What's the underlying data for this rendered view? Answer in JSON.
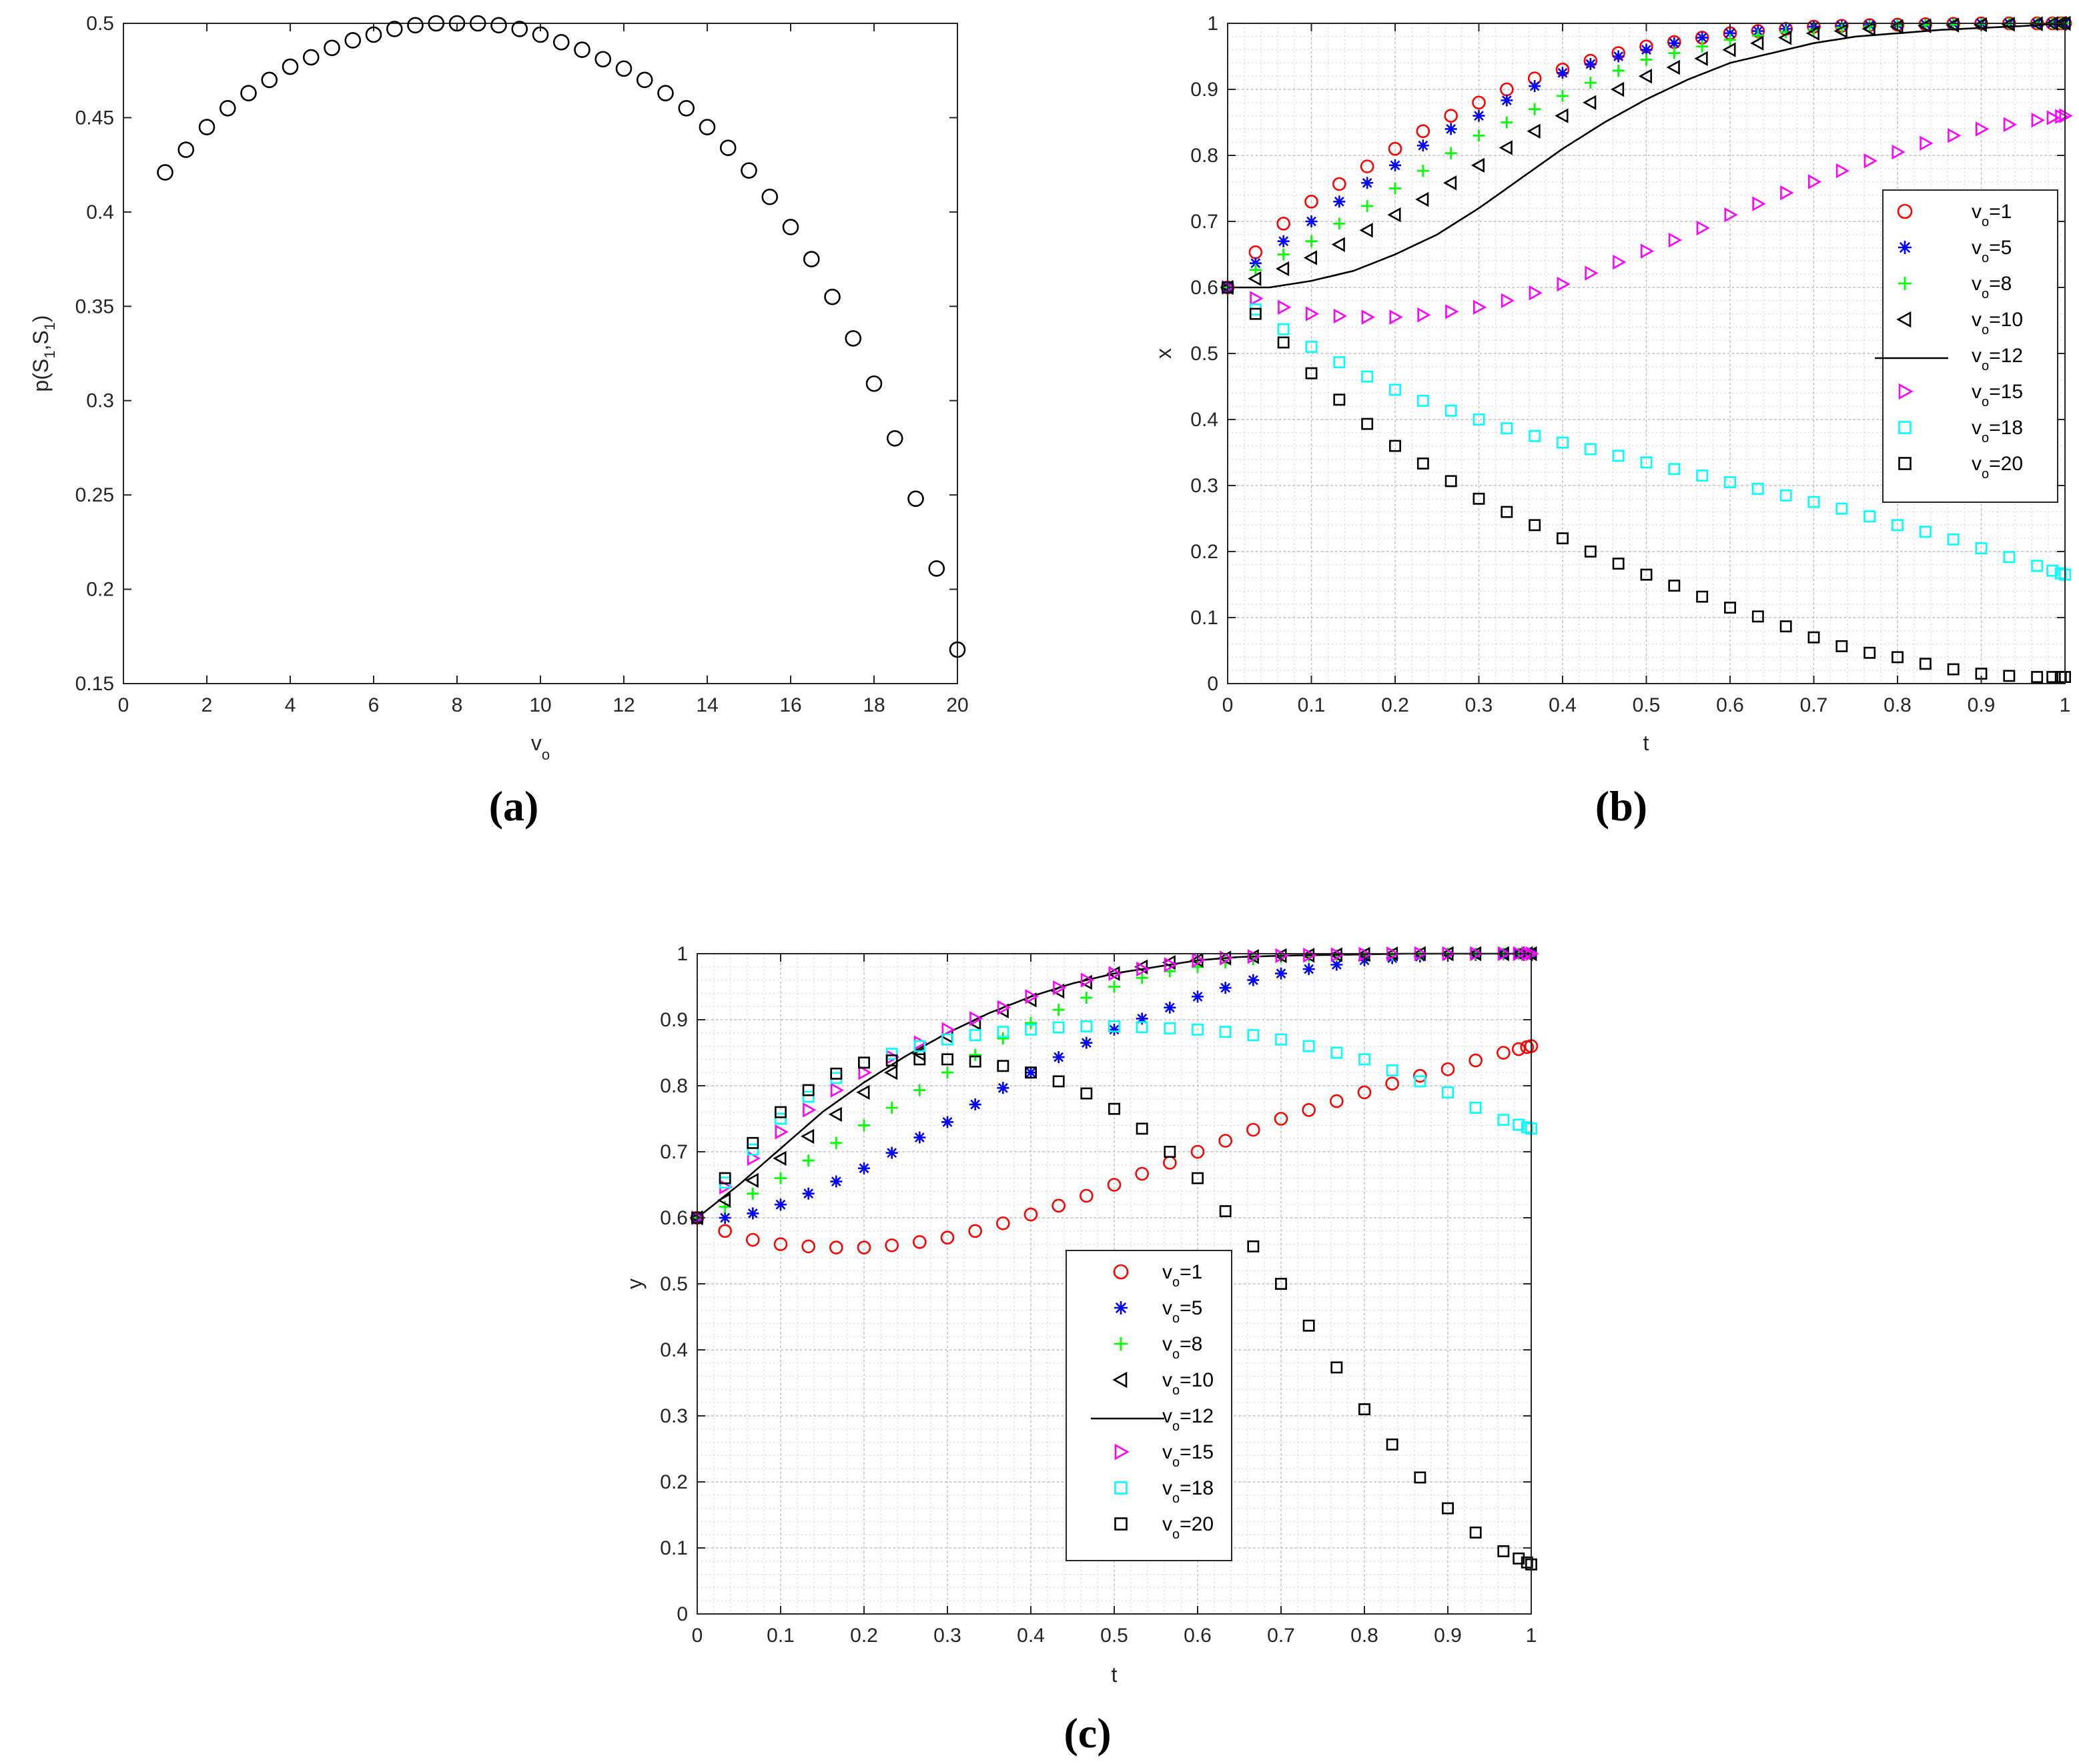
{
  "chart_data": [
    {
      "panel": "a",
      "caption": "(a)",
      "type": "scatter",
      "title": "",
      "xlabel": "v",
      "xlabel_sub": "o",
      "ylabel": "p(S",
      "ylabel_parts": [
        "p(S",
        "1",
        ",S",
        "1",
        ")"
      ],
      "xlim": [
        0,
        20
      ],
      "ylim": [
        0.15,
        0.5
      ],
      "xticks": [
        0,
        2,
        4,
        6,
        8,
        10,
        12,
        14,
        16,
        18,
        20
      ],
      "yticks": [
        0.15,
        0.2,
        0.25,
        0.3,
        0.35,
        0.4,
        0.45,
        0.5
      ],
      "grid": false,
      "marker": "circle",
      "color": "#000000",
      "x": [
        1,
        1.5,
        2,
        2.5,
        3,
        3.5,
        4,
        4.5,
        5,
        5.5,
        6,
        6.5,
        7,
        7.5,
        8,
        8.5,
        9,
        9.5,
        10,
        10.5,
        11,
        11.5,
        12,
        12.5,
        13,
        13.5,
        14,
        14.5,
        15,
        15.5,
        16,
        16.5,
        17,
        17.5,
        18,
        18.5,
        19,
        19.5,
        20
      ],
      "y": [
        0.421,
        0.433,
        0.445,
        0.455,
        0.463,
        0.47,
        0.477,
        0.482,
        0.487,
        0.491,
        0.494,
        0.497,
        0.499,
        0.5,
        0.5,
        0.5,
        0.499,
        0.497,
        0.494,
        0.49,
        0.486,
        0.481,
        0.476,
        0.47,
        0.463,
        0.455,
        0.445,
        0.434,
        0.422,
        0.408,
        0.392,
        0.375,
        0.355,
        0.333,
        0.309,
        0.28,
        0.248,
        0.211,
        0.168
      ]
    },
    {
      "panel": "b",
      "caption": "(b)",
      "type": "line",
      "title": "",
      "xlabel": "t",
      "ylabel": "x",
      "xlim": [
        0,
        1
      ],
      "ylim": [
        0,
        1
      ],
      "xticks": [
        0,
        0.1,
        0.2,
        0.3,
        0.4,
        0.5,
        0.6,
        0.7,
        0.8,
        0.9,
        1
      ],
      "yticks": [
        0,
        0.1,
        0.2,
        0.3,
        0.4,
        0.5,
        0.6,
        0.7,
        0.8,
        0.9,
        1
      ],
      "grid": true,
      "legend_position": "right",
      "t": [
        0,
        0.05,
        0.1,
        0.15,
        0.2,
        0.25,
        0.3,
        0.35,
        0.4,
        0.45,
        0.5,
        0.55,
        0.6,
        0.65,
        0.7,
        0.75,
        0.8,
        0.85,
        0.9,
        0.95,
        1
      ],
      "series": [
        {
          "name": "1",
          "marker": "circle",
          "color": "#ff0000",
          "values": [
            0.6,
            0.68,
            0.73,
            0.77,
            0.81,
            0.85,
            0.88,
            0.91,
            0.93,
            0.95,
            0.965,
            0.975,
            0.985,
            0.99,
            0.995,
            0.997,
            0.998,
            0.999,
            1,
            1,
            1
          ]
        },
        {
          "name": "5",
          "marker": "asterisk",
          "color": "#0000ff",
          "values": [
            0.6,
            0.655,
            0.7,
            0.745,
            0.785,
            0.83,
            0.86,
            0.895,
            0.925,
            0.945,
            0.96,
            0.975,
            0.985,
            0.99,
            0.995,
            0.997,
            0.998,
            0.999,
            1,
            1,
            1
          ]
        },
        {
          "name": "8",
          "marker": "plus",
          "color": "#00ff00",
          "values": [
            0.6,
            0.64,
            0.67,
            0.71,
            0.75,
            0.79,
            0.83,
            0.86,
            0.89,
            0.92,
            0.945,
            0.96,
            0.975,
            0.985,
            0.99,
            0.995,
            0.997,
            0.998,
            0.999,
            1,
            1
          ]
        },
        {
          "name": "10",
          "marker": "triangle-left",
          "color": "#000000",
          "values": [
            0.6,
            0.62,
            0.645,
            0.675,
            0.71,
            0.745,
            0.785,
            0.825,
            0.86,
            0.89,
            0.92,
            0.94,
            0.96,
            0.975,
            0.985,
            0.99,
            0.995,
            0.997,
            0.998,
            0.999,
            1
          ]
        },
        {
          "name": "12",
          "marker": "line",
          "color": "#000000",
          "values": [
            0.6,
            0.6,
            0.61,
            0.625,
            0.65,
            0.68,
            0.72,
            0.765,
            0.81,
            0.85,
            0.885,
            0.915,
            0.94,
            0.955,
            0.97,
            0.98,
            0.985,
            0.99,
            0.993,
            0.996,
            1
          ]
        },
        {
          "name": "15",
          "marker": "triangle-right",
          "color": "#ff00ff",
          "values": [
            0.6,
            0.575,
            0.56,
            0.555,
            0.555,
            0.56,
            0.57,
            0.585,
            0.605,
            0.63,
            0.655,
            0.68,
            0.71,
            0.735,
            0.76,
            0.785,
            0.805,
            0.825,
            0.84,
            0.85,
            0.86
          ]
        },
        {
          "name": "18",
          "marker": "square",
          "color": "#00ffff",
          "values": [
            0.6,
            0.55,
            0.51,
            0.475,
            0.445,
            0.42,
            0.4,
            0.38,
            0.365,
            0.35,
            0.335,
            0.32,
            0.305,
            0.29,
            0.275,
            0.26,
            0.24,
            0.225,
            0.205,
            0.185,
            0.165
          ]
        },
        {
          "name": "20",
          "marker": "square",
          "color": "#000000",
          "values": [
            0.6,
            0.54,
            0.47,
            0.41,
            0.36,
            0.32,
            0.28,
            0.25,
            0.22,
            0.19,
            0.165,
            0.14,
            0.115,
            0.095,
            0.07,
            0.05,
            0.04,
            0.025,
            0.015,
            0.01,
            0.01
          ]
        }
      ]
    },
    {
      "panel": "c",
      "caption": "(c)",
      "type": "line",
      "title": "",
      "xlabel": "t",
      "ylabel": "y",
      "xlim": [
        0,
        1
      ],
      "ylim": [
        0,
        1
      ],
      "xticks": [
        0,
        0.1,
        0.2,
        0.3,
        0.4,
        0.5,
        0.6,
        0.7,
        0.8,
        0.9,
        1
      ],
      "yticks": [
        0,
        0.1,
        0.2,
        0.3,
        0.4,
        0.5,
        0.6,
        0.7,
        0.8,
        0.9,
        1
      ],
      "grid": true,
      "legend_position": "center",
      "t": [
        0,
        0.05,
        0.1,
        0.15,
        0.2,
        0.25,
        0.3,
        0.35,
        0.4,
        0.45,
        0.5,
        0.55,
        0.6,
        0.65,
        0.7,
        0.75,
        0.8,
        0.85,
        0.9,
        0.95,
        1
      ],
      "series": [
        {
          "name": "1",
          "marker": "circle",
          "color": "#ff0000",
          "values": [
            0.6,
            0.57,
            0.56,
            0.555,
            0.555,
            0.56,
            0.57,
            0.585,
            0.605,
            0.625,
            0.65,
            0.675,
            0.7,
            0.725,
            0.75,
            0.77,
            0.79,
            0.81,
            0.825,
            0.845,
            0.86
          ]
        },
        {
          "name": "5",
          "marker": "asterisk",
          "color": "#0000ff",
          "values": [
            0.6,
            0.6,
            0.62,
            0.645,
            0.675,
            0.71,
            0.745,
            0.785,
            0.82,
            0.855,
            0.885,
            0.91,
            0.935,
            0.955,
            0.97,
            0.98,
            0.99,
            0.995,
            0.997,
            0.999,
            1
          ]
        },
        {
          "name": "8",
          "marker": "plus",
          "color": "#00ff00",
          "values": [
            0.6,
            0.625,
            0.66,
            0.7,
            0.74,
            0.78,
            0.82,
            0.86,
            0.895,
            0.925,
            0.95,
            0.97,
            0.98,
            0.99,
            0.995,
            0.997,
            0.998,
            0.999,
            1,
            1,
            1
          ]
        },
        {
          "name": "10",
          "marker": "triangle-left",
          "color": "#000000",
          "values": [
            0.6,
            0.64,
            0.69,
            0.74,
            0.79,
            0.835,
            0.875,
            0.905,
            0.93,
            0.95,
            0.97,
            0.985,
            0.99,
            0.995,
            0.997,
            0.998,
            0.999,
            1,
            1,
            1,
            1
          ]
        },
        {
          "name": "12",
          "marker": "line",
          "color": "#000000",
          "values": [
            0.6,
            0.65,
            0.705,
            0.76,
            0.805,
            0.845,
            0.88,
            0.91,
            0.935,
            0.955,
            0.97,
            0.98,
            0.99,
            0.995,
            0.997,
            0.998,
            0.999,
            1,
            1,
            1,
            1
          ]
        },
        {
          "name": "15",
          "marker": "triangle-right",
          "color": "#ff00ff",
          "values": [
            0.6,
            0.67,
            0.73,
            0.78,
            0.82,
            0.855,
            0.885,
            0.91,
            0.935,
            0.955,
            0.97,
            0.98,
            0.99,
            0.995,
            0.997,
            0.998,
            0.999,
            1,
            1,
            1,
            1
          ]
        },
        {
          "name": "18",
          "marker": "square",
          "color": "#00ffff",
          "values": [
            0.6,
            0.68,
            0.75,
            0.8,
            0.835,
            0.855,
            0.87,
            0.88,
            0.885,
            0.89,
            0.89,
            0.888,
            0.885,
            0.88,
            0.87,
            0.855,
            0.84,
            0.815,
            0.79,
            0.755,
            0.735
          ]
        },
        {
          "name": "20",
          "marker": "square",
          "color": "#000000",
          "values": [
            0.6,
            0.69,
            0.76,
            0.81,
            0.835,
            0.84,
            0.84,
            0.835,
            0.82,
            0.8,
            0.765,
            0.72,
            0.66,
            0.585,
            0.5,
            0.405,
            0.31,
            0.23,
            0.16,
            0.105,
            0.075
          ]
        }
      ]
    }
  ],
  "legend": {
    "prefix": "v",
    "sub": "o",
    "equals": "="
  }
}
